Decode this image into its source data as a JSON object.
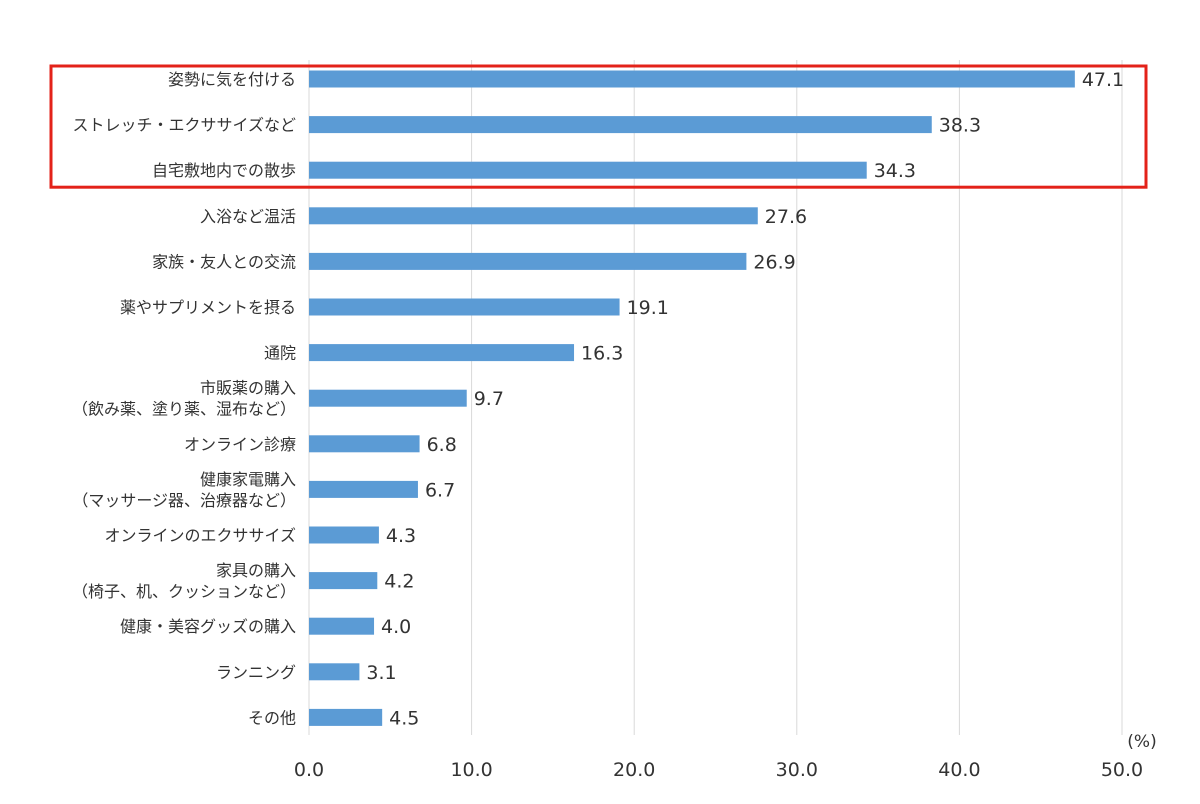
{
  "chart_data": {
    "type": "bar",
    "orientation": "horizontal",
    "categories": [
      "姿勢に気を付ける",
      "ストレッチ・エクササイズなど",
      "自宅敷地内での散歩",
      "入浴など温活",
      "家族・友人との交流",
      "薬やサプリメントを摂る",
      "通院",
      "市販薬の購入\n（飲み薬、塗り薬、湿布など）",
      "オンライン診療",
      "健康家電購入\n（マッサージ器、治療器など）",
      "オンラインのエクササイズ",
      "家具の購入\n（椅子、机、クッションなど）",
      "健康・美容グッズの購入",
      "ランニング",
      "その他"
    ],
    "values": [
      47.1,
      38.3,
      34.3,
      27.6,
      26.9,
      19.1,
      16.3,
      9.7,
      6.8,
      6.7,
      4.3,
      4.2,
      4.0,
      3.1,
      4.5
    ],
    "value_labels": [
      "47.1",
      "38.3",
      "34.3",
      "27.6",
      "26.9",
      "19.1",
      "16.3",
      "9.7",
      "6.8",
      "6.7",
      "4.3",
      "4.2",
      "4.0",
      "3.1",
      "4.5"
    ],
    "x_ticks": [
      "0.0",
      "10.0",
      "20.0",
      "30.0",
      "40.0",
      "50.0"
    ],
    "xlim": [
      0,
      50
    ],
    "unit_label": "(%)",
    "grid": true,
    "highlight": {
      "categories_from": 0,
      "categories_to": 2,
      "color": "#e32219"
    },
    "bar_color": "#5b9bd5",
    "grid_color": "#d9d9d9",
    "text_color": "#333333"
  }
}
